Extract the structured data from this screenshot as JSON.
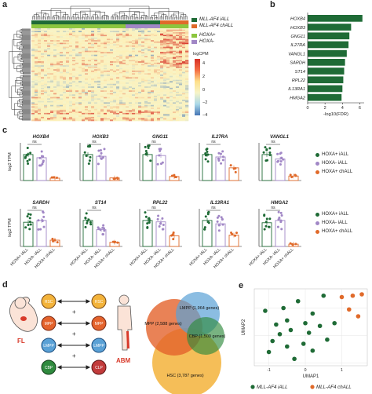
{
  "panels": {
    "a": "a",
    "b": "b",
    "c": "c",
    "d": "d",
    "e": "e"
  },
  "panel_a": {
    "legend_groups": [
      {
        "label": "MLL-AF4 iALL",
        "color": "#1f6b36"
      },
      {
        "label": "MLL-AF4 chALL",
        "color": "#e06a2a"
      },
      {
        "label": "HOXA+",
        "color": "#8cc63f"
      },
      {
        "label": "HOXA-",
        "color": "#a187c6"
      }
    ],
    "colorbar_title": "logCPM",
    "colorbar_ticks": [
      "4",
      "2",
      "0",
      "−2",
      "−4"
    ],
    "colors": {
      "high": "#d73027",
      "mid": "#f7f4c8",
      "low": "#4575b4",
      "pale": "#fdf0b8"
    }
  },
  "chart_data": [
    {
      "type": "bar",
      "panel": "b",
      "orientation": "horizontal",
      "categories": [
        "HOXB4",
        "HOXB3",
        "GNG11",
        "IL27RA",
        "VANGL1",
        "SARDH",
        "ST14",
        "RPL22",
        "IL13RA1",
        "HMGA2"
      ],
      "values": [
        6.3,
        5.0,
        4.8,
        4.7,
        4.5,
        4.3,
        4.2,
        4.1,
        4.0,
        3.9
      ],
      "xlabel": "-log10(FDR)",
      "xlim": [
        0,
        6.5
      ],
      "xticks": [
        "0",
        "2",
        "4",
        "6"
      ],
      "color": "#1f6b36"
    },
    {
      "type": "bar",
      "panel": "c",
      "ylabel": "log2 TPM",
      "categories": [
        "HOXA+ iALL",
        "HOXA- iALL",
        "HOXA+ chALL"
      ],
      "colors": [
        "#1f6b36",
        "#a187c6",
        "#e06a2a"
      ],
      "sig_label": "ns",
      "genes": [
        {
          "gene": "HOXB4",
          "values": [
            3.3,
            2.9,
            0.3
          ]
        },
        {
          "gene": "HOXB3",
          "values": [
            3.0,
            2.8,
            0.3
          ]
        },
        {
          "gene": "GNG11",
          "values": [
            2.6,
            2.5,
            0.4
          ]
        },
        {
          "gene": "IL27RA",
          "values": [
            4.3,
            3.9,
            2.1
          ]
        },
        {
          "gene": "VANGL1",
          "values": [
            2.9,
            2.4,
            0.5
          ]
        },
        {
          "gene": "SARDH",
          "values": [
            2.7,
            2.9,
            0.7
          ]
        },
        {
          "gene": "ST14",
          "values": [
            3.1,
            2.0,
            0.5
          ]
        },
        {
          "gene": "RPL22",
          "values": [
            9.3,
            8.8,
            3.8
          ]
        },
        {
          "gene": "IL13RA1",
          "values": [
            5.5,
            4.8,
            2.4
          ]
        },
        {
          "gene": "HMGA2",
          "values": [
            4.2,
            4.6,
            0.4
          ]
        }
      ]
    },
    {
      "type": "scatter",
      "panel": "e",
      "xlabel": "UMAP1",
      "ylabel": "UMAP2",
      "xticks": [
        "-1",
        "0",
        "1"
      ],
      "series": [
        {
          "name": "MLL-AF4 iALL",
          "color": "#1f6b36",
          "points": [
            [
              -1.1,
              0.9
            ],
            [
              -0.8,
              0.4
            ],
            [
              -0.6,
              1.0
            ],
            [
              -0.5,
              0.55
            ],
            [
              -0.4,
              0.2
            ],
            [
              -0.7,
              0.05
            ],
            [
              -0.9,
              -0.2
            ],
            [
              -1.0,
              -0.6
            ],
            [
              -0.5,
              -0.4
            ],
            [
              -0.3,
              -0.85
            ],
            [
              -0.05,
              -0.3
            ],
            [
              0.1,
              0.1
            ],
            [
              0.2,
              -0.55
            ],
            [
              0.4,
              0.35
            ],
            [
              0.6,
              -0.15
            ],
            [
              0.8,
              0.45
            ],
            [
              0.2,
              0.8
            ],
            [
              0.5,
              1.45
            ],
            [
              0.0,
              0.45
            ],
            [
              -0.2,
              1.25
            ]
          ]
        },
        {
          "name": "MLL-AF4 chALL",
          "color": "#e06a2a",
          "points": [
            [
              1.0,
              1.4
            ],
            [
              1.3,
              1.45
            ],
            [
              1.55,
              1.5
            ],
            [
              1.2,
              0.95
            ],
            [
              1.45,
              0.7
            ]
          ]
        }
      ]
    }
  ],
  "panel_c_legend": [
    {
      "label": "HOXA+ iALL",
      "color": "#1f6b36"
    },
    {
      "label": "HOXA- iALL",
      "color": "#a187c6"
    },
    {
      "label": "HOXA+ chALL",
      "color": "#e06a2a"
    }
  ],
  "panel_d": {
    "fl_label": "FL",
    "abm_label": "ABM",
    "cells": [
      {
        "label": "HSC",
        "fill": "#f3b33b"
      },
      {
        "label": "MPP",
        "fill": "#e4632c"
      },
      {
        "label": "LMPP",
        "fill": "#5aa1d6"
      },
      {
        "label": "CBP",
        "fill": "#2f8a3e"
      }
    ],
    "right_cells": [
      {
        "label": "HSC",
        "fill": "#f3b33b"
      },
      {
        "label": "MPP",
        "fill": "#e4632c"
      },
      {
        "label": "LMPP",
        "fill": "#5aa1d6"
      },
      {
        "label": "CLP",
        "fill": "#c23b3b"
      }
    ],
    "venn": [
      {
        "label": "LMPP (1,964 genes)",
        "fill": "#5aa1d6"
      },
      {
        "label": "MPP (2,588 genes)",
        "fill": "#e4632c"
      },
      {
        "label": "CBP (1,509 genes)",
        "fill": "#2f8a3e"
      },
      {
        "label": "HSC (3,787 genes)",
        "fill": "#f3b33b"
      }
    ]
  },
  "panel_e_legend": [
    {
      "label": "MLL-AF4 iALL",
      "color": "#1f6b36"
    },
    {
      "label": "MLL-AF4 chALL",
      "color": "#e06a2a"
    }
  ]
}
